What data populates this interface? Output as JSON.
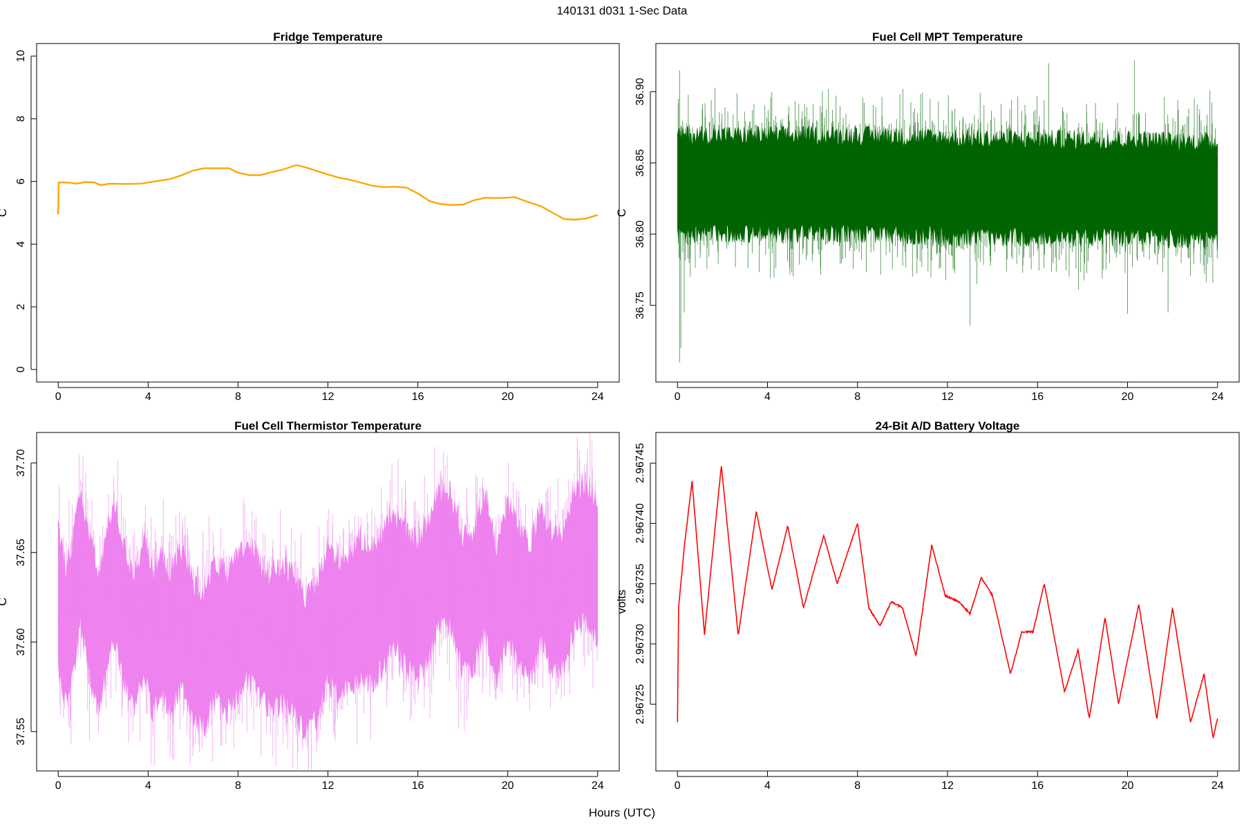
{
  "figure": {
    "title": "140131   d031   1-Sec Data",
    "xlabel": "Hours (UTC)"
  },
  "chart_data": [
    {
      "id": "fridge",
      "type": "line",
      "title": "Fridge Temperature",
      "xlabel": "Hours (UTC)",
      "ylabel": "C",
      "xlim": [
        0,
        24
      ],
      "ylim": [
        0,
        10
      ],
      "xticks": [
        "0",
        "4",
        "8",
        "12",
        "16",
        "20",
        "24"
      ],
      "yticks": [
        "0",
        "2",
        "4",
        "6",
        "8",
        "10"
      ],
      "color": "#ffa500",
      "noise": 0,
      "series": [
        {
          "name": "Fridge Temperature",
          "x": [
            0,
            0.02,
            0.5,
            0.8,
            1.2,
            1.6,
            1.9,
            2.3,
            3,
            3.7,
            4.3,
            5,
            5.5,
            6,
            6.5,
            7,
            7.6,
            8,
            8.5,
            9,
            9.5,
            10,
            10.6,
            11,
            12,
            12.5,
            13,
            14,
            14.5,
            15,
            15.5,
            16,
            16.5,
            17,
            17.5,
            18,
            18.5,
            19,
            19.5,
            20,
            20.3,
            21,
            21.5,
            22,
            22.5,
            23,
            23.5,
            24
          ],
          "y": [
            4.95,
            5.97,
            5.96,
            5.93,
            5.98,
            5.97,
            5.88,
            5.93,
            5.92,
            5.93,
            6.0,
            6.08,
            6.2,
            6.35,
            6.42,
            6.42,
            6.42,
            6.28,
            6.2,
            6.2,
            6.3,
            6.38,
            6.52,
            6.45,
            6.22,
            6.12,
            6.05,
            5.86,
            5.82,
            5.83,
            5.8,
            5.62,
            5.38,
            5.28,
            5.25,
            5.26,
            5.4,
            5.48,
            5.47,
            5.48,
            5.5,
            5.32,
            5.2,
            5.0,
            4.8,
            4.78,
            4.82,
            4.93
          ]
        }
      ]
    },
    {
      "id": "mpt",
      "type": "line",
      "title": "Fuel Cell MPT Temperature",
      "xlabel": "Hours (UTC)",
      "ylabel": "C",
      "xlim": [
        0,
        24
      ],
      "ylim": [
        36.705,
        36.925
      ],
      "xticks": [
        "0",
        "4",
        "8",
        "12",
        "16",
        "20",
        "24"
      ],
      "yticks": [
        "36.75",
        "36.80",
        "36.85",
        "36.90"
      ],
      "ytick_values": [
        36.75,
        36.8,
        36.85,
        36.9
      ],
      "color": "#006400",
      "noise": 0.055,
      "spikes": [
        {
          "x": 0.1,
          "y": 36.71
        },
        {
          "x": 0.15,
          "y": 36.72
        },
        {
          "x": 0.3,
          "y": 36.745
        },
        {
          "x": 0.1,
          "y": 36.915
        },
        {
          "x": 13.0,
          "y": 36.736
        },
        {
          "x": 20.0,
          "y": 36.744
        },
        {
          "x": 21.8,
          "y": 36.745
        },
        {
          "x": 20.3,
          "y": 36.922
        },
        {
          "x": 16.5,
          "y": 36.92
        }
      ],
      "series": [
        {
          "name": "Fuel Cell MPT Temperature",
          "x": [
            0,
            4,
            8,
            12,
            16,
            20,
            24
          ],
          "y": [
            36.835,
            36.835,
            36.835,
            36.833,
            36.832,
            36.832,
            36.83
          ]
        }
      ]
    },
    {
      "id": "thermistor",
      "type": "line",
      "title": "Fuel Cell Thermistor Temperature",
      "xlabel": "Hours (UTC)",
      "ylabel": "C",
      "xlim": [
        0,
        24
      ],
      "ylim": [
        37.535,
        37.71
      ],
      "xticks": [
        "0",
        "4",
        "8",
        "12",
        "16",
        "20",
        "24"
      ],
      "yticks": [
        "37.55",
        "37.60",
        "37.65",
        "37.70"
      ],
      "ytick_values": [
        37.55,
        37.6,
        37.65,
        37.7
      ],
      "color": "#ee82ee",
      "noise": 0.06,
      "series": [
        {
          "name": "Fuel Cell Thermistor Temperature",
          "x": [
            0,
            0.3,
            0.6,
            1.0,
            1.4,
            1.8,
            2.2,
            2.5,
            3.0,
            3.4,
            3.8,
            4.2,
            4.6,
            5.0,
            5.5,
            6.0,
            6.5,
            7.0,
            7.5,
            8.0,
            8.5,
            9.0,
            9.5,
            10.0,
            10.5,
            11.0,
            11.5,
            12.0,
            12.5,
            13.0,
            13.5,
            14.0,
            14.5,
            15.0,
            15.5,
            16.0,
            16.5,
            17.0,
            17.5,
            18.0,
            18.5,
            19.0,
            19.5,
            20.0,
            20.5,
            21.0,
            21.5,
            22.0,
            22.5,
            23.0,
            23.5,
            24.0
          ],
          "y": [
            37.625,
            37.605,
            37.615,
            37.648,
            37.62,
            37.6,
            37.625,
            37.64,
            37.612,
            37.6,
            37.62,
            37.6,
            37.61,
            37.6,
            37.615,
            37.595,
            37.59,
            37.608,
            37.598,
            37.61,
            37.618,
            37.605,
            37.6,
            37.605,
            37.598,
            37.585,
            37.595,
            37.615,
            37.608,
            37.612,
            37.62,
            37.615,
            37.625,
            37.635,
            37.622,
            37.618,
            37.63,
            37.648,
            37.645,
            37.62,
            37.625,
            37.645,
            37.615,
            37.64,
            37.625,
            37.615,
            37.64,
            37.62,
            37.625,
            37.648,
            37.65,
            37.64
          ]
        }
      ]
    },
    {
      "id": "battery",
      "type": "line",
      "title": "24-Bit A/D Battery Voltage",
      "xlabel": "Hours (UTC)",
      "ylabel": "volts",
      "xlim": [
        0,
        24
      ],
      "ylim": [
        2.967205,
        2.967465
      ],
      "xticks": [
        "0",
        "4",
        "8",
        "12",
        "16",
        "20",
        "24"
      ],
      "yticks": [
        "2.96725",
        "2.96730",
        "2.96735",
        "2.96740",
        "2.96745"
      ],
      "ytick_values": [
        2.96725,
        2.9673,
        2.96735,
        2.9674,
        2.96745
      ],
      "color": "#ff0000",
      "noise": 1.2e-06,
      "series": [
        {
          "name": "24-Bit A/D Battery Voltage",
          "x": [
            0,
            0.05,
            0.3,
            0.65,
            1.2,
            1.95,
            2.7,
            3.5,
            4.2,
            4.9,
            5.6,
            6.5,
            7.1,
            8.0,
            8.5,
            9.0,
            9.5,
            10.0,
            10.6,
            11.3,
            11.9,
            12.5,
            13.0,
            13.5,
            14.0,
            14.8,
            15.3,
            15.8,
            16.3,
            17.2,
            17.8,
            18.3,
            19.0,
            19.6,
            20.5,
            21.3,
            22.0,
            22.8,
            23.4,
            23.8,
            24.0
          ],
          "y": [
            2.967235,
            2.96733,
            2.96738,
            2.967435,
            2.967308,
            2.967448,
            2.967307,
            2.96741,
            2.967345,
            2.967398,
            2.96733,
            2.96739,
            2.96735,
            2.9674,
            2.96733,
            2.967315,
            2.967335,
            2.96733,
            2.96729,
            2.967382,
            2.96734,
            2.967335,
            2.967325,
            2.967355,
            2.96734,
            2.967275,
            2.96731,
            2.96731,
            2.96735,
            2.96726,
            2.967295,
            2.967238,
            2.967322,
            2.96725,
            2.967333,
            2.967238,
            2.96733,
            2.967235,
            2.967275,
            2.967222,
            2.967238
          ]
        }
      ]
    }
  ]
}
